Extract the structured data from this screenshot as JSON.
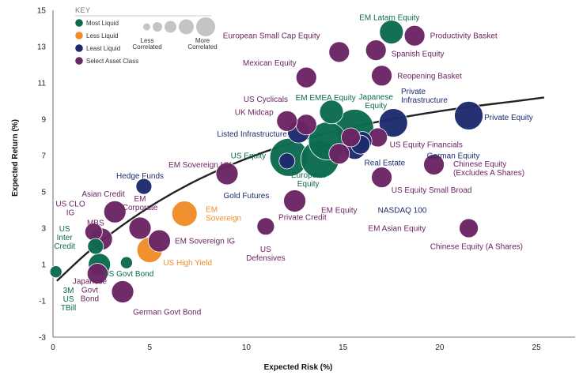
{
  "chart_data": {
    "type": "scatter",
    "title": "",
    "xlabel": "Expected Risk (%)",
    "ylabel": "Expected Return (%)",
    "xlim": [
      0,
      27
    ],
    "ylim": [
      -3,
      15
    ],
    "x_ticks": [
      "0",
      "5",
      "10",
      "15",
      "20",
      "25"
    ],
    "x_tick_values": [
      0,
      5,
      10,
      15,
      20,
      25
    ],
    "y_ticks": [
      "-3",
      "-1",
      "1",
      "3",
      "5",
      "7",
      "9",
      "11",
      "13",
      "15"
    ],
    "y_tick_values": [
      -3,
      -1,
      1,
      3,
      5,
      7,
      9,
      11,
      13,
      15
    ],
    "grid": false,
    "legend_position": "top-left",
    "colors": {
      "most": "#0b6b4e",
      "less": "#f28c28",
      "least": "#1d2a6e",
      "select": "#6b2464",
      "curve": "#222222"
    },
    "key": {
      "title": "KEY",
      "items": [
        {
          "label": "Most Liquid",
          "category": "most"
        },
        {
          "label": "Less Liquid",
          "category": "less"
        },
        {
          "label": "Least Liquid",
          "category": "least"
        },
        {
          "label": "Select Asset Class",
          "category": "select"
        }
      ],
      "size_label_left": [
        "Less",
        "Correlated"
      ],
      "size_label_right": [
        "More",
        "Correlated"
      ],
      "size_scale": [
        0.25,
        0.4,
        0.55,
        0.75,
        1.0
      ]
    },
    "curve": {
      "x": [
        0.2,
        2,
        4,
        6,
        8,
        10,
        12,
        14,
        16,
        18,
        20,
        22,
        24,
        25.4
      ],
      "y": [
        0.1,
        1.9,
        3.5,
        4.85,
        5.95,
        6.85,
        7.6,
        8.2,
        8.7,
        9.1,
        9.45,
        9.75,
        10.0,
        10.2
      ]
    },
    "points": [
      {
        "name": "EM Latam Equity",
        "label": [
          "EM Latam Equity"
        ],
        "x": 17.5,
        "y": 13.8,
        "category": "most",
        "size": 0.55,
        "label_x": 17.4,
        "label_y": 14.6,
        "anchor": "middle"
      },
      {
        "name": "Productivity Basket",
        "label": [
          "Productivity Basket"
        ],
        "x": 18.7,
        "y": 13.6,
        "category": "select",
        "size": 0.45,
        "label_x": 19.5,
        "label_y": 13.6,
        "anchor": "start"
      },
      {
        "name": "European Small Cap Equity",
        "label": [
          "European Small Cap Equity"
        ],
        "x": 14.8,
        "y": 12.7,
        "category": "select",
        "size": 0.45,
        "label_x": 11.3,
        "label_y": 13.6,
        "anchor": "middle"
      },
      {
        "name": "Spanish Equity",
        "label": [
          "Spanish Equity"
        ],
        "x": 16.7,
        "y": 12.8,
        "category": "select",
        "size": 0.45,
        "label_x": 17.5,
        "label_y": 12.6,
        "anchor": "start"
      },
      {
        "name": "Mexican Equity",
        "label": [
          "Mexican Equity"
        ],
        "x": 13.1,
        "y": 11.3,
        "category": "select",
        "size": 0.45,
        "label_x": 11.2,
        "label_y": 12.1,
        "anchor": "middle"
      },
      {
        "name": "Reopening Basket",
        "label": [
          "Reopening Basket"
        ],
        "x": 17.0,
        "y": 11.4,
        "category": "select",
        "size": 0.45,
        "label_x": 17.8,
        "label_y": 11.4,
        "anchor": "start"
      },
      {
        "name": "US Cyclicals",
        "label": [
          "US Cyclicals"
        ],
        "x": 13.1,
        "y": 8.7,
        "category": "select",
        "size": 0.45,
        "label_x": 11.0,
        "label_y": 10.1,
        "anchor": "middle"
      },
      {
        "name": "EM EMEA Equity",
        "label": [
          "EM EMEA Equity"
        ],
        "x": 14.4,
        "y": 9.4,
        "category": "most",
        "size": 0.55,
        "label_x": 14.1,
        "label_y": 10.2,
        "anchor": "middle"
      },
      {
        "name": "Japanese Equity",
        "label": [
          "Japanese",
          "Equity"
        ],
        "x": 15.6,
        "y": 8.5,
        "category": "most",
        "size": 1.0,
        "label_x": 16.7,
        "label_y": 10.0,
        "anchor": "middle"
      },
      {
        "name": "Private Infrastructure",
        "label": [
          "Private",
          "Infrastructure"
        ],
        "x": 17.6,
        "y": 8.8,
        "category": "least",
        "size": 0.7,
        "label_x": 18.0,
        "label_y": 10.3,
        "anchor": "start"
      },
      {
        "name": "Private Equity",
        "label": [
          "Private Equity"
        ],
        "x": 21.5,
        "y": 9.2,
        "category": "least",
        "size": 0.7,
        "label_x": 22.3,
        "label_y": 9.1,
        "anchor": "start"
      },
      {
        "name": "UK Midcap",
        "label": [
          "UK Midcap"
        ],
        "x": 12.1,
        "y": 8.9,
        "category": "select",
        "size": 0.45,
        "label_x": 10.4,
        "label_y": 9.4,
        "anchor": "middle"
      },
      {
        "name": "Listed Infrastructure",
        "label": [
          "Listed Infrastructure"
        ],
        "x": 12.7,
        "y": 8.3,
        "category": "least",
        "size": 0.5,
        "label_x": 12.1,
        "label_y": 8.2,
        "anchor": "end"
      },
      {
        "name": "US Equity Financials",
        "label": [
          "US Equity Financials"
        ],
        "x": 16.8,
        "y": 8.0,
        "category": "select",
        "size": 0.4,
        "label_x": 19.3,
        "label_y": 7.6,
        "anchor": "middle"
      },
      {
        "name": "German Equity",
        "label": [
          "German Equity"
        ],
        "x": 16.0,
        "y": 7.8,
        "category": "least",
        "size": 0.4,
        "label_x": 20.7,
        "label_y": 7.0,
        "anchor": "middle"
      },
      {
        "name": "US Equity",
        "label": [
          "US Equity"
        ],
        "x": 12.2,
        "y": 6.9,
        "category": "most",
        "size": 1.0,
        "label_x": 10.1,
        "label_y": 7.0,
        "anchor": "middle"
      },
      {
        "name": "European Equity",
        "label": [
          "European",
          "Equity"
        ],
        "x": 13.8,
        "y": 6.8,
        "category": "most",
        "size": 1.0,
        "label_x": 13.2,
        "label_y": 5.7,
        "anchor": "middle"
      },
      {
        "name": "Listed Infra Center",
        "label": [],
        "x": 14.2,
        "y": 7.8,
        "category": "most",
        "size": 1.0
      },
      {
        "name": "Real Estate",
        "label": [
          "Real Estate"
        ],
        "x": 15.6,
        "y": 7.4,
        "category": "least",
        "size": 0.5,
        "label_x": 16.1,
        "label_y": 6.6,
        "anchor": "start"
      },
      {
        "name": "EM Sovereign HY",
        "label": [
          "EM Sovereign HY"
        ],
        "x": 9.0,
        "y": 6.0,
        "category": "select",
        "size": 0.5,
        "label_x": 7.6,
        "label_y": 6.5,
        "anchor": "middle"
      },
      {
        "name": "Chinese Equity (Excludes A Shares)",
        "label": [
          "Chinese Equity",
          "(Excludes A Shares)"
        ],
        "x": 19.7,
        "y": 6.5,
        "category": "select",
        "size": 0.45,
        "label_x": 20.7,
        "label_y": 6.3,
        "anchor": "start"
      },
      {
        "name": "Hedge Funds",
        "label": [
          "Hedge Funds"
        ],
        "x": 4.7,
        "y": 5.3,
        "category": "least",
        "size": 0.3,
        "label_x": 4.5,
        "label_y": 5.9,
        "anchor": "middle"
      },
      {
        "name": "US Equity Small Broad",
        "label": [
          "US Equity Small Broad"
        ],
        "x": 17.0,
        "y": 5.8,
        "category": "select",
        "size": 0.45,
        "label_x": 17.5,
        "label_y": 5.1,
        "anchor": "start"
      },
      {
        "name": "Asian Credit",
        "label": [
          "Asian Credit"
        ],
        "x": 3.2,
        "y": 3.9,
        "category": "select",
        "size": 0.5,
        "label_x": 2.6,
        "label_y": 4.9,
        "anchor": "middle"
      },
      {
        "name": "EM Corporate",
        "label": [
          "EM",
          "Corporate"
        ],
        "x": 4.5,
        "y": 3.0,
        "category": "select",
        "size": 0.5,
        "label_x": 4.5,
        "label_y": 4.4,
        "anchor": "middle"
      },
      {
        "name": "EM Sovereign",
        "label": [
          "EM",
          "Sovereign"
        ],
        "x": 6.8,
        "y": 3.8,
        "category": "less",
        "size": 0.6,
        "label_x": 7.9,
        "label_y": 3.8,
        "anchor": "start"
      },
      {
        "name": "Gold Futures",
        "label": [
          "Gold Futures"
        ],
        "x": 12.1,
        "y": 6.7,
        "category": "least",
        "size": 0.3,
        "label_x": 10.0,
        "label_y": 4.8,
        "anchor": "middle"
      },
      {
        "name": "Private Credit",
        "label": [
          "Private Credit"
        ],
        "x": 12.5,
        "y": 4.5,
        "category": "select",
        "size": 0.5,
        "label_x": 12.9,
        "label_y": 3.6,
        "anchor": "middle"
      },
      {
        "name": "EM Equity",
        "label": [
          "EM Equity"
        ],
        "x": 14.8,
        "y": 7.1,
        "category": "select",
        "size": 0.45,
        "label_x": 14.8,
        "label_y": 4.0,
        "anchor": "middle"
      },
      {
        "name": "NASDAQ 100",
        "label": [
          "NASDAQ 100"
        ],
        "x": 15.9,
        "y": 7.6,
        "category": "least",
        "size": 0.4,
        "label_x": 16.8,
        "label_y": 4.0,
        "anchor": "start"
      },
      {
        "name": "EM Asian Equity",
        "label": [
          "EM Asian Equity"
        ],
        "x": 15.4,
        "y": 8.0,
        "category": "select",
        "size": 0.4,
        "label_x": 16.3,
        "label_y": 3.0,
        "anchor": "start"
      },
      {
        "name": "Chinese Equity (A Shares)",
        "label": [
          "Chinese Equity (A Shares)"
        ],
        "x": 21.5,
        "y": 3.0,
        "category": "select",
        "size": 0.4,
        "label_x": 21.9,
        "label_y": 2.0,
        "anchor": "middle"
      },
      {
        "name": "US CLO IG",
        "label": [
          "US CLO",
          "IG"
        ],
        "x": 2.1,
        "y": 2.8,
        "category": "select",
        "size": 0.35,
        "label_x": 0.9,
        "label_y": 4.1,
        "anchor": "middle"
      },
      {
        "name": "MBS",
        "label": [
          "MBS"
        ],
        "x": 2.5,
        "y": 2.4,
        "category": "select",
        "size": 0.5,
        "label_x": 2.2,
        "label_y": 3.3,
        "anchor": "middle"
      },
      {
        "name": "EM Sovereign IG",
        "label": [
          "EM Sovereign IG"
        ],
        "x": 5.5,
        "y": 2.3,
        "category": "select",
        "size": 0.5,
        "label_x": 6.3,
        "label_y": 2.3,
        "anchor": "start"
      },
      {
        "name": "US Defensives",
        "label": [
          "US",
          "Defensives"
        ],
        "x": 11.0,
        "y": 3.1,
        "category": "select",
        "size": 0.35,
        "label_x": 11.0,
        "label_y": 1.6,
        "anchor": "middle"
      },
      {
        "name": "US Inter Credit",
        "label": [
          "US",
          "Inter",
          "Credit"
        ],
        "x": 2.2,
        "y": 2.0,
        "category": "most",
        "size": 0.3,
        "label_x": 0.6,
        "label_y": 2.5,
        "anchor": "middle"
      },
      {
        "name": "US High Yield",
        "label": [
          "US High Yield"
        ],
        "x": 5.0,
        "y": 1.8,
        "category": "less",
        "size": 0.6,
        "label_x": 5.7,
        "label_y": 1.1,
        "anchor": "start"
      },
      {
        "name": "US Govt Bond",
        "label": [
          "US Govt Bond"
        ],
        "x": 2.4,
        "y": 1.0,
        "category": "most",
        "size": 0.5,
        "label_x": 3.9,
        "label_y": 0.5,
        "anchor": "middle"
      },
      {
        "name": "US Govt Bond small",
        "label": [],
        "x": 3.8,
        "y": 1.1,
        "category": "most",
        "size": 0.18
      },
      {
        "name": "Japanese Govt Bond",
        "label": [
          "Japanese",
          "Govt",
          "Bond"
        ],
        "x": 2.3,
        "y": 0.5,
        "category": "select",
        "size": 0.45,
        "label_x": 1.9,
        "label_y": -0.4,
        "anchor": "middle"
      },
      {
        "name": "3M US TBill",
        "label": [
          "3M",
          "US",
          "TBill"
        ],
        "x": 0.15,
        "y": 0.6,
        "category": "most",
        "size": 0.18,
        "label_x": 0.8,
        "label_y": -0.9,
        "anchor": "middle"
      },
      {
        "name": "German Govt Bond",
        "label": [
          "German Govt Bond"
        ],
        "x": 3.6,
        "y": -0.5,
        "category": "select",
        "size": 0.5,
        "label_x": 5.9,
        "label_y": -1.6,
        "anchor": "middle"
      }
    ]
  }
}
